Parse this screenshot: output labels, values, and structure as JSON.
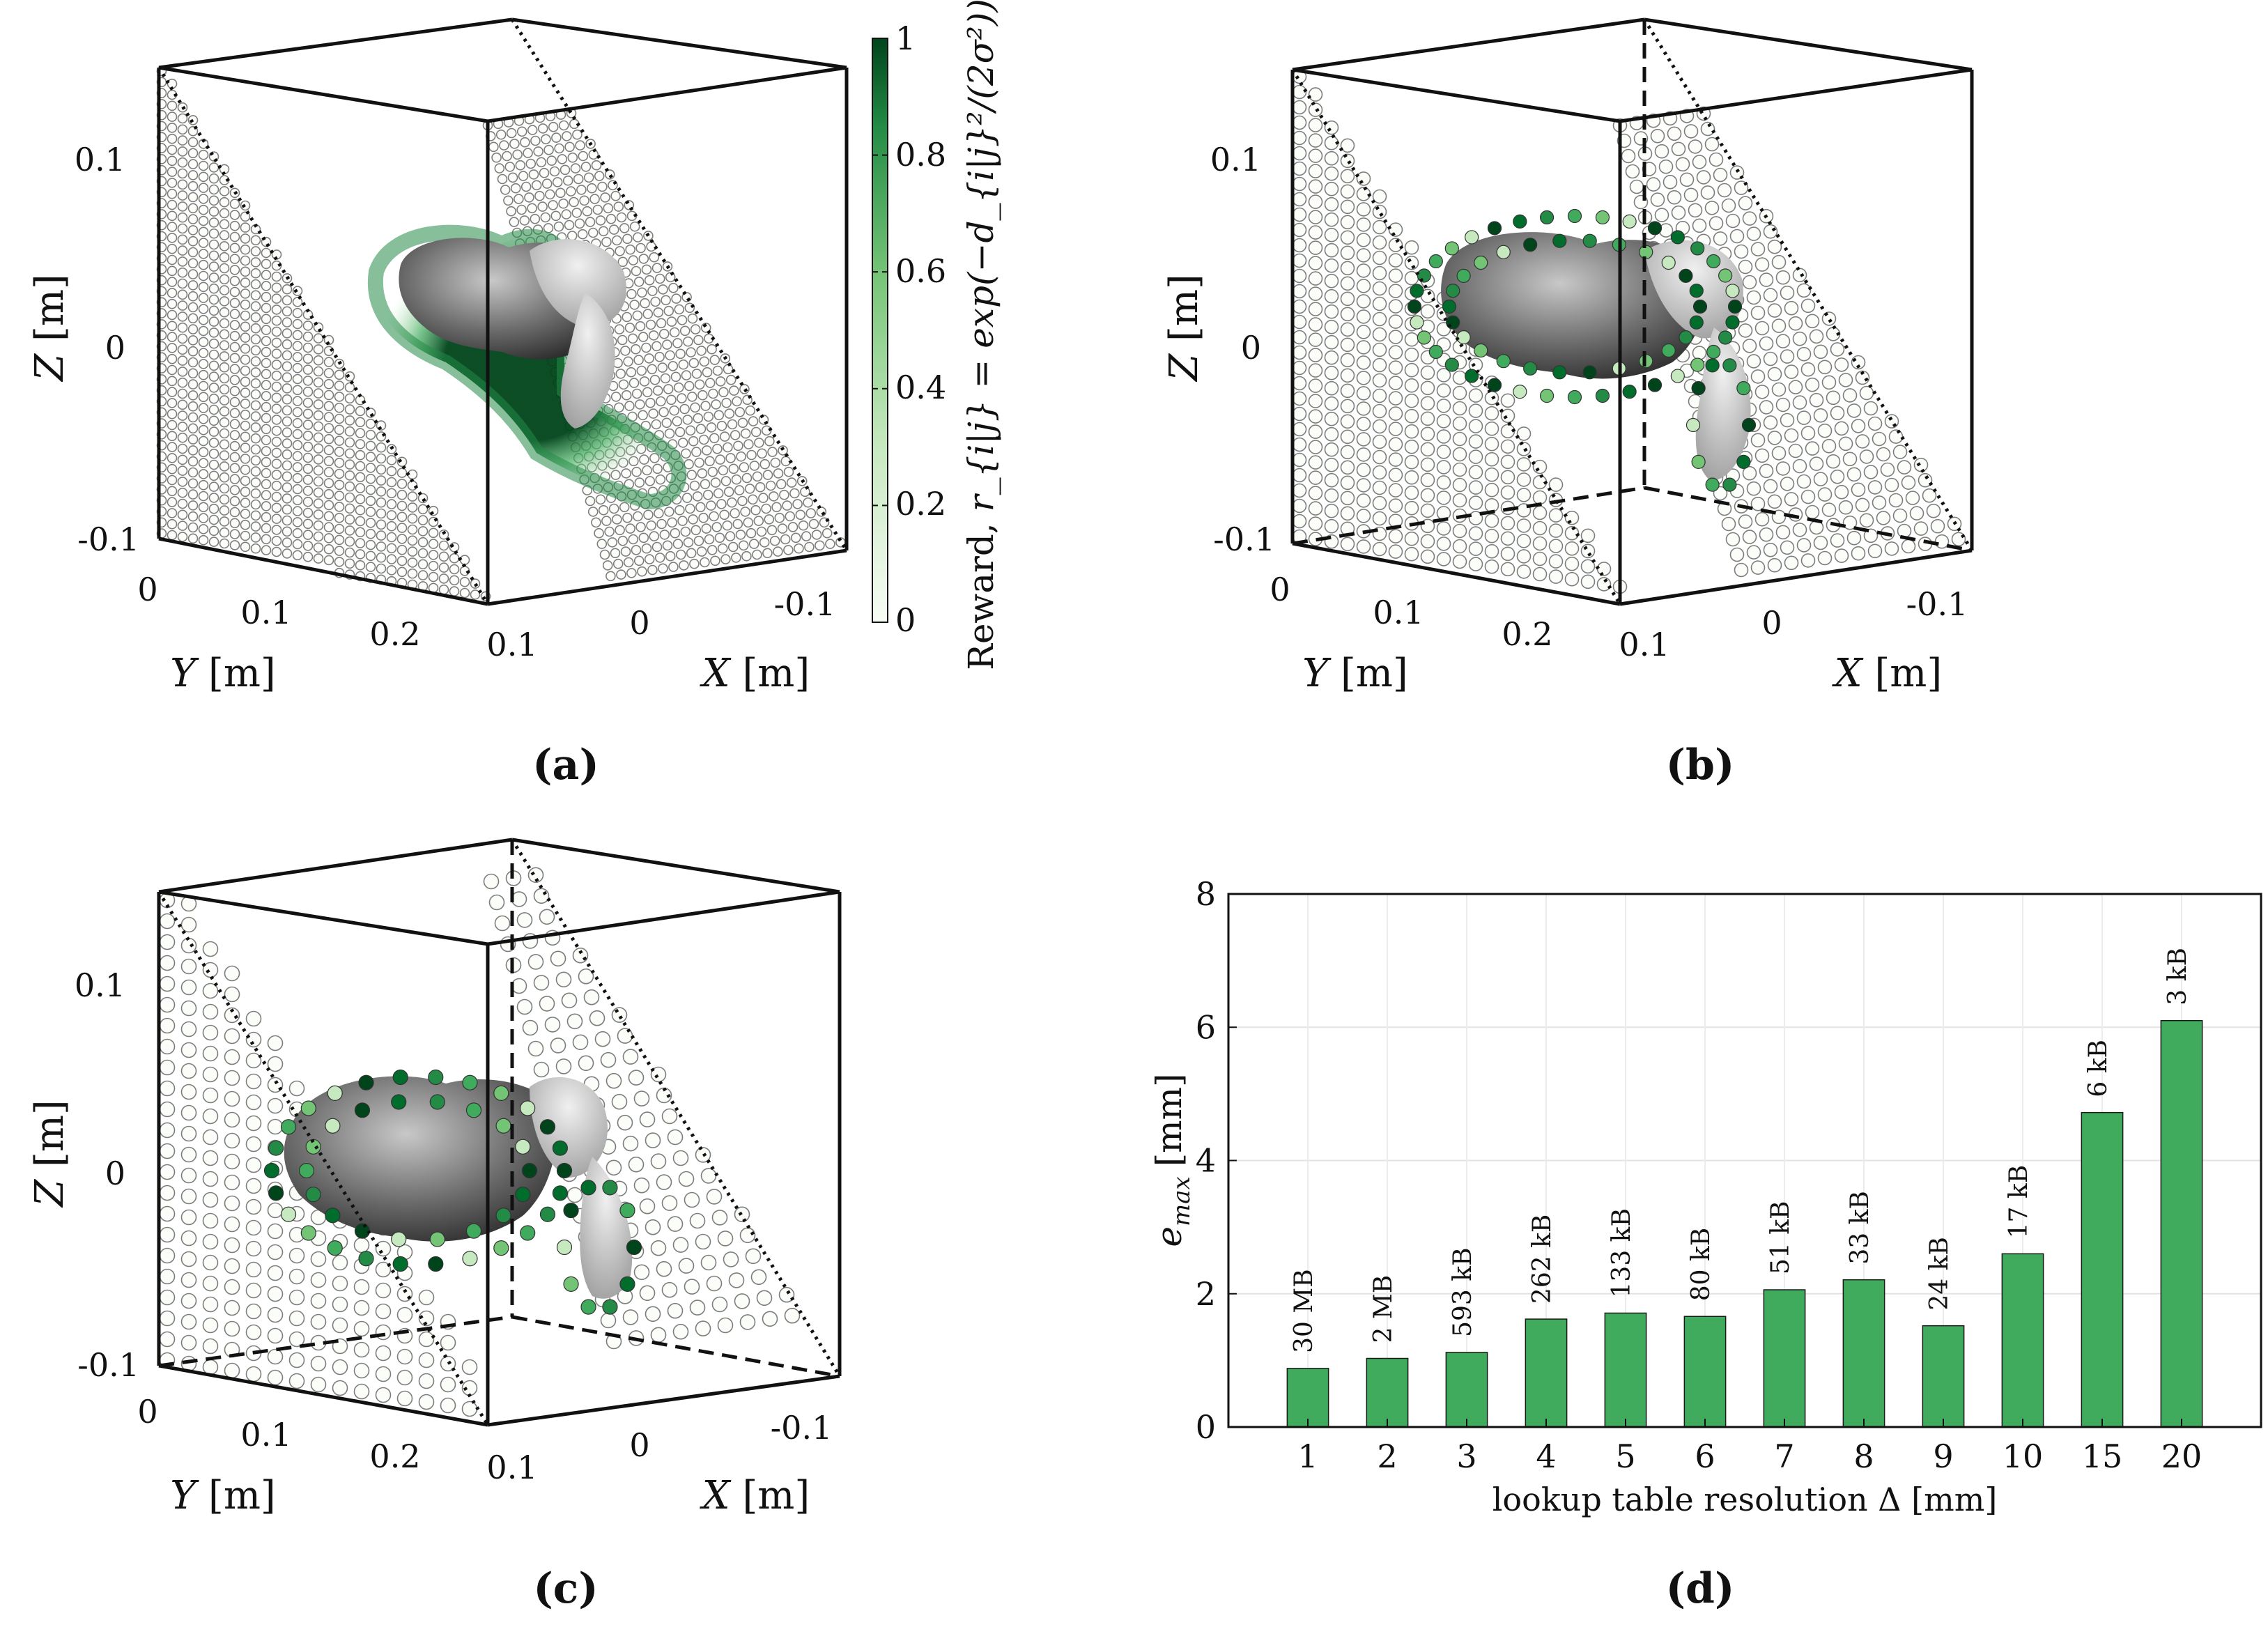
{
  "panels": {
    "a": {
      "caption": "(a)",
      "z_axis": {
        "label_var": "Z",
        "label_unit": "[m]",
        "ticks": [
          "0.1",
          "0",
          "-0.1"
        ]
      },
      "y_axis": {
        "label_var": "Y",
        "label_unit": "[m]",
        "ticks": [
          "0",
          "0.1",
          "0.2"
        ]
      },
      "x_axis": {
        "label_var": "X",
        "label_unit": "[m]",
        "ticks": [
          "0.1",
          "0",
          "-0.1"
        ]
      },
      "colorbar": {
        "label_prefix": "Reward, ",
        "label_formula": "r_{i|j} = exp(−d_{i|j}²/(2σ²))",
        "ticks": [
          "1",
          "0.8",
          "0.6",
          "0.4",
          "0.2",
          "0"
        ],
        "colors": {
          "low": "#f4fbf2",
          "high": "#00441b"
        }
      }
    },
    "b": {
      "caption": "(b)",
      "z_axis": {
        "label_var": "Z",
        "label_unit": "[m]",
        "ticks": [
          "0.1",
          "0",
          "-0.1"
        ]
      },
      "y_axis": {
        "label_var": "Y",
        "label_unit": "[m]",
        "ticks": [
          "0",
          "0.1",
          "0.2"
        ]
      },
      "x_axis": {
        "label_var": "X",
        "label_unit": "[m]",
        "ticks": [
          "0.1",
          "0",
          "-0.1"
        ]
      }
    },
    "c": {
      "caption": "(c)",
      "z_axis": {
        "label_var": "Z",
        "label_unit": "[m]",
        "ticks": [
          "0.1",
          "0",
          "-0.1"
        ]
      },
      "y_axis": {
        "label_var": "Y",
        "label_unit": "[m]",
        "ticks": [
          "0",
          "0.1",
          "0.2"
        ]
      },
      "x_axis": {
        "label_var": "X",
        "label_unit": "[m]",
        "ticks": [
          "0.1",
          "0",
          "-0.1"
        ]
      }
    },
    "d": {
      "caption": "(d)"
    }
  },
  "chart_data": {
    "type": "bar",
    "title": "",
    "xlabel": "lookup table resolution Δ [mm]",
    "ylabel_var": "e",
    "ylabel_sub": "max",
    "ylabel_unit": "[mm]",
    "categories": [
      "1",
      "2",
      "3",
      "4",
      "5",
      "6",
      "7",
      "8",
      "9",
      "10",
      "15",
      "20"
    ],
    "values": [
      0.88,
      1.03,
      1.12,
      1.62,
      1.71,
      1.66,
      2.06,
      2.21,
      1.52,
      2.6,
      4.72,
      6.1
    ],
    "data_labels": [
      "30 MB",
      "2 MB",
      "593 kB",
      "262 kB",
      "133 kB",
      "80 kB",
      "51 kB",
      "33 kB",
      "24 kB",
      "17 kB",
      "6 kB",
      "3 kB"
    ],
    "ylim": [
      0,
      8
    ],
    "yticks": [
      "0",
      "2",
      "4",
      "6",
      "8"
    ],
    "grid": true,
    "bar_color": "#41ab5d"
  }
}
